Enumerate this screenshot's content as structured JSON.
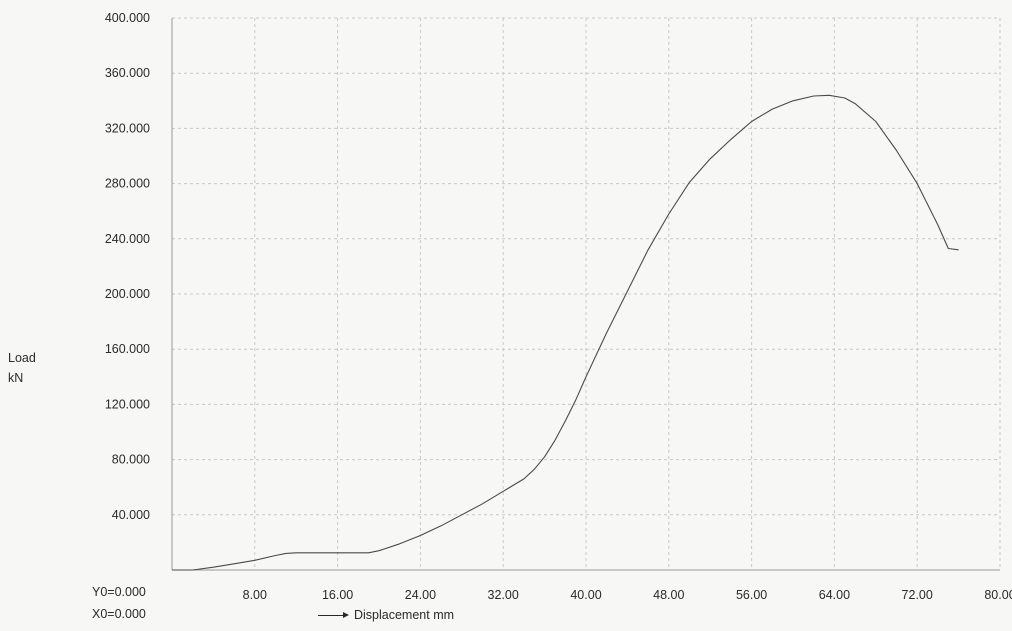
{
  "chart_data": {
    "type": "line",
    "title": "",
    "ylabel_line1": "Load",
    "ylabel_line2": "kN",
    "xlabel": "Displacement mm",
    "origin_y": "Y0=0.000",
    "origin_x": "X0=0.000",
    "xlim": [
      0,
      80
    ],
    "ylim": [
      0,
      400
    ],
    "x_ticks": [
      "8.00",
      "16.00",
      "24.00",
      "32.00",
      "40.00",
      "48.00",
      "56.00",
      "64.00",
      "72.00",
      "80.00"
    ],
    "y_ticks": [
      "40.000",
      "80.000",
      "120.000",
      "160.000",
      "200.000",
      "240.000",
      "280.000",
      "320.000",
      "360.000",
      "400.000"
    ],
    "grid": true,
    "line_color": "#4a4a4a",
    "grid_color": "#c8c8c8",
    "series": [
      {
        "x": [
          0,
          2,
          4,
          6,
          8,
          10,
          11,
          12,
          14,
          16,
          18,
          19,
          20,
          22,
          24,
          26,
          28,
          30,
          32,
          34,
          35,
          36,
          37,
          38,
          39,
          40,
          42,
          44,
          46,
          48,
          50,
          52,
          54,
          56,
          58,
          60,
          62,
          63.5,
          65,
          66,
          68,
          70,
          72,
          74,
          75,
          76
        ],
        "y": [
          0,
          0,
          2,
          4.5,
          7,
          10.5,
          12,
          12.5,
          12.5,
          12.5,
          12.5,
          12.5,
          14,
          19,
          25,
          32,
          40,
          48,
          57,
          66,
          73,
          82,
          94,
          108,
          123,
          140,
          172,
          202,
          232,
          258,
          281,
          298,
          312,
          325,
          334,
          340,
          343.5,
          344,
          342,
          338,
          325,
          304,
          280,
          250,
          233,
          232
        ]
      }
    ]
  }
}
